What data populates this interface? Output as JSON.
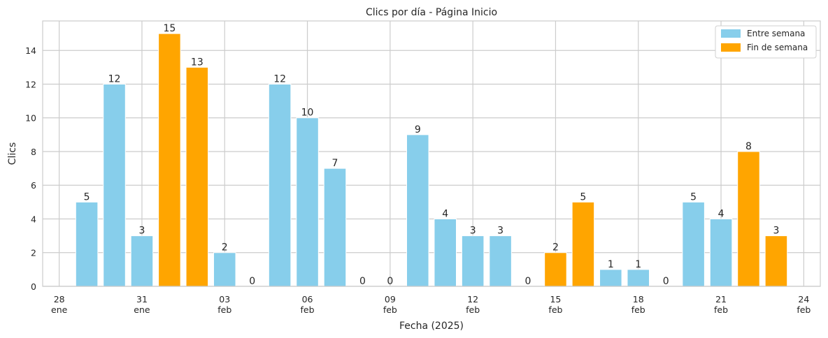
{
  "chart_data": {
    "type": "bar",
    "title": "Clics por día - Página Inicio",
    "xlabel": "Fecha (2025)",
    "ylabel": "Clics",
    "ylim": [
      0,
      15.75
    ],
    "yticks": [
      0,
      2,
      4,
      6,
      8,
      10,
      12,
      14
    ],
    "grid": true,
    "legend_position": "top-right",
    "colors": {
      "weekday": "#87ceeb",
      "weekend": "#ffa500"
    },
    "legend": [
      {
        "key": "weekday",
        "label": "Entre semana"
      },
      {
        "key": "weekend",
        "label": "Fin de semana"
      }
    ],
    "x_ticks": [
      {
        "day": 28,
        "top": "28",
        "bottom": "ene"
      },
      {
        "day": 31,
        "top": "31",
        "bottom": "ene"
      },
      {
        "day": 34,
        "top": "03",
        "bottom": "feb"
      },
      {
        "day": 37,
        "top": "06",
        "bottom": "feb"
      },
      {
        "day": 40,
        "top": "09",
        "bottom": "feb"
      },
      {
        "day": 43,
        "top": "12",
        "bottom": "feb"
      },
      {
        "day": 46,
        "top": "15",
        "bottom": "feb"
      },
      {
        "day": 49,
        "top": "18",
        "bottom": "feb"
      },
      {
        "day": 52,
        "top": "21",
        "bottom": "feb"
      },
      {
        "day": 55,
        "top": "24",
        "bottom": "feb"
      }
    ],
    "bars": [
      {
        "date": "2025-01-29",
        "value": 5,
        "kind": "weekday",
        "label": "5"
      },
      {
        "date": "2025-01-30",
        "value": 12,
        "kind": "weekday",
        "label": "12"
      },
      {
        "date": "2025-01-31",
        "value": 3,
        "kind": "weekday",
        "label": "3"
      },
      {
        "date": "2025-02-01",
        "value": 15,
        "kind": "weekend",
        "label": "15"
      },
      {
        "date": "2025-02-02",
        "value": 13,
        "kind": "weekend",
        "label": "13"
      },
      {
        "date": "2025-02-03",
        "value": 2,
        "kind": "weekday",
        "label": "2"
      },
      {
        "date": "2025-02-04",
        "value": 0,
        "kind": "weekday",
        "label": "0"
      },
      {
        "date": "2025-02-05",
        "value": 12,
        "kind": "weekday",
        "label": "12"
      },
      {
        "date": "2025-02-06",
        "value": 10,
        "kind": "weekday",
        "label": "10"
      },
      {
        "date": "2025-02-07",
        "value": 7,
        "kind": "weekday",
        "label": "7"
      },
      {
        "date": "2025-02-08",
        "value": 0,
        "kind": "weekend",
        "label": "0"
      },
      {
        "date": "2025-02-09",
        "value": 0,
        "kind": "weekend",
        "label": "0"
      },
      {
        "date": "2025-02-10",
        "value": 9,
        "kind": "weekday",
        "label": "9"
      },
      {
        "date": "2025-02-11",
        "value": 4,
        "kind": "weekday",
        "label": "4"
      },
      {
        "date": "2025-02-12",
        "value": 3,
        "kind": "weekday",
        "label": "3"
      },
      {
        "date": "2025-02-13",
        "value": 3,
        "kind": "weekday",
        "label": "3"
      },
      {
        "date": "2025-02-14",
        "value": 0,
        "kind": "weekday",
        "label": "0"
      },
      {
        "date": "2025-02-15",
        "value": 2,
        "kind": "weekend",
        "label": "2"
      },
      {
        "date": "2025-02-16",
        "value": 5,
        "kind": "weekend",
        "label": "5"
      },
      {
        "date": "2025-02-17",
        "value": 1,
        "kind": "weekday",
        "label": "1"
      },
      {
        "date": "2025-02-18",
        "value": 1,
        "kind": "weekday",
        "label": "1"
      },
      {
        "date": "2025-02-19",
        "value": 0,
        "kind": "weekday",
        "label": "0"
      },
      {
        "date": "2025-02-20",
        "value": 5,
        "kind": "weekday",
        "label": "5"
      },
      {
        "date": "2025-02-21",
        "value": 4,
        "kind": "weekday",
        "label": "4"
      },
      {
        "date": "2025-02-22",
        "value": 8,
        "kind": "weekend",
        "label": "8"
      },
      {
        "date": "2025-02-23",
        "value": 3,
        "kind": "weekend",
        "label": "3"
      }
    ]
  }
}
